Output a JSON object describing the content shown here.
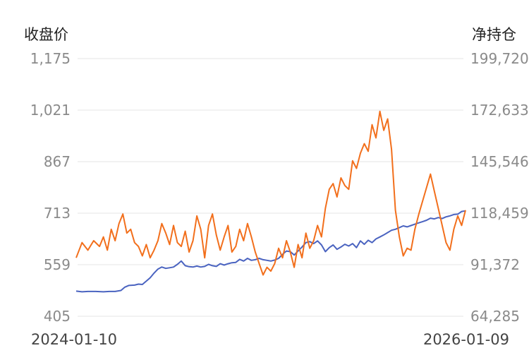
{
  "chart_data": {
    "type": "line",
    "title": "",
    "left_axis_title": "收盘价",
    "right_axis_title": "净持仓",
    "left_axis": {
      "ticks": [
        "1,175",
        "1,021",
        "867",
        "713",
        "559",
        "405"
      ],
      "range": [
        405,
        1175
      ]
    },
    "right_axis": {
      "ticks": [
        "199,720",
        "172,633",
        "145,546",
        "118,459",
        "91,372",
        "64,285"
      ],
      "range": [
        64285,
        199720
      ]
    },
    "x_ticks": [
      "2024-01-10",
      "2026-01-09"
    ],
    "x_range": [
      0,
      100
    ],
    "grid": true,
    "series": [
      {
        "name": "",
        "axis": "left",
        "color": "#4a63c0",
        "points": [
          [
            0,
            480
          ],
          [
            1.5,
            478
          ],
          [
            3,
            479
          ],
          [
            5,
            479
          ],
          [
            7,
            478
          ],
          [
            8.5,
            479
          ],
          [
            10,
            479
          ],
          [
            11.5,
            482
          ],
          [
            12.5,
            492
          ],
          [
            13.5,
            497
          ],
          [
            15,
            498
          ],
          [
            16,
            501
          ],
          [
            17,
            500
          ],
          [
            18,
            510
          ],
          [
            19,
            520
          ],
          [
            20,
            534
          ],
          [
            21,
            546
          ],
          [
            22,
            552
          ],
          [
            23,
            548
          ],
          [
            24,
            550
          ],
          [
            25,
            552
          ],
          [
            26,
            560
          ],
          [
            27,
            570
          ],
          [
            28,
            556
          ],
          [
            29,
            553
          ],
          [
            30,
            552
          ],
          [
            31,
            555
          ],
          [
            32,
            552
          ],
          [
            33,
            554
          ],
          [
            34,
            560
          ],
          [
            35,
            556
          ],
          [
            36,
            554
          ],
          [
            37,
            562
          ],
          [
            38,
            558
          ],
          [
            39,
            562
          ],
          [
            40,
            565
          ],
          [
            41,
            566
          ],
          [
            42,
            575
          ],
          [
            43,
            570
          ],
          [
            44,
            578
          ],
          [
            45,
            572
          ],
          [
            46,
            574
          ],
          [
            47,
            578
          ],
          [
            48,
            574
          ],
          [
            49,
            572
          ],
          [
            50,
            570
          ],
          [
            51,
            573
          ],
          [
            52,
            578
          ],
          [
            53,
            590
          ],
          [
            54,
            600
          ],
          [
            55,
            598
          ],
          [
            56,
            588
          ],
          [
            57,
            600
          ],
          [
            58,
            612
          ],
          [
            59,
            625
          ],
          [
            60,
            628
          ],
          [
            61,
            622
          ],
          [
            62,
            630
          ],
          [
            63,
            618
          ],
          [
            64,
            598
          ],
          [
            65,
            610
          ],
          [
            66,
            618
          ],
          [
            67,
            605
          ],
          [
            68,
            612
          ],
          [
            69,
            620
          ],
          [
            70,
            615
          ],
          [
            71,
            622
          ],
          [
            72,
            610
          ],
          [
            73,
            630
          ],
          [
            74,
            620
          ],
          [
            75,
            632
          ],
          [
            76,
            625
          ],
          [
            77,
            636
          ],
          [
            78,
            642
          ],
          [
            79,
            648
          ],
          [
            80,
            655
          ],
          [
            81,
            662
          ],
          [
            82,
            665
          ],
          [
            83,
            670
          ],
          [
            84,
            675
          ],
          [
            85,
            672
          ],
          [
            86,
            676
          ],
          [
            87,
            680
          ],
          [
            88,
            684
          ],
          [
            89,
            688
          ],
          [
            90,
            692
          ],
          [
            91,
            698
          ],
          [
            92,
            696
          ],
          [
            93,
            700
          ],
          [
            94,
            697
          ],
          [
            95,
            702
          ],
          [
            96,
            705
          ],
          [
            97,
            709
          ],
          [
            98,
            710
          ],
          [
            99,
            718
          ],
          [
            100,
            720
          ]
        ],
        "note_skip": true
      },
      {
        "name": "",
        "axis": "right",
        "color": "#f26f1c",
        "points": [
          [
            0,
            95000
          ],
          [
            1.5,
            103000
          ],
          [
            3,
            99000
          ],
          [
            4.5,
            104000
          ],
          [
            6,
            101000
          ],
          [
            7,
            106000
          ],
          [
            8,
            99000
          ],
          [
            9,
            110000
          ],
          [
            10,
            104000
          ],
          [
            11,
            113000
          ],
          [
            12,
            118000
          ],
          [
            13,
            108000
          ],
          [
            14,
            110000
          ],
          [
            15,
            103000
          ],
          [
            16,
            101000
          ],
          [
            17,
            96000
          ],
          [
            18,
            102000
          ],
          [
            19,
            95000
          ],
          [
            20,
            99000
          ],
          [
            21,
            104000
          ],
          [
            22,
            113000
          ],
          [
            23,
            108000
          ],
          [
            24,
            102000
          ],
          [
            25,
            112000
          ],
          [
            26,
            103000
          ],
          [
            27,
            101000
          ],
          [
            28,
            109000
          ],
          [
            29,
            98000
          ],
          [
            30,
            104000
          ],
          [
            31,
            117000
          ],
          [
            32,
            110000
          ],
          [
            33,
            95000
          ],
          [
            34,
            112000
          ],
          [
            35,
            118000
          ],
          [
            36,
            107000
          ],
          [
            37,
            99000
          ],
          [
            38,
            106000
          ],
          [
            39,
            112000
          ],
          [
            40,
            98000
          ],
          [
            41,
            101000
          ],
          [
            42,
            110000
          ],
          [
            43,
            104000
          ],
          [
            44,
            113000
          ],
          [
            45,
            106000
          ],
          [
            46,
            98000
          ],
          [
            47,
            92000
          ],
          [
            48,
            86000
          ],
          [
            49,
            90000
          ],
          [
            50,
            88000
          ],
          [
            51,
            92000
          ],
          [
            52,
            100000
          ],
          [
            53,
            95000
          ],
          [
            54,
            104000
          ],
          [
            55,
            98000
          ],
          [
            56,
            90000
          ],
          [
            57,
            102000
          ],
          [
            58,
            95000
          ],
          [
            59,
            108000
          ],
          [
            60,
            100000
          ],
          [
            61,
            104000
          ],
          [
            62,
            112000
          ],
          [
            63,
            106000
          ],
          [
            64,
            121000
          ],
          [
            65,
            131000
          ],
          [
            66,
            134000
          ],
          [
            67,
            127000
          ],
          [
            68,
            137000
          ],
          [
            69,
            133000
          ],
          [
            70,
            131000
          ],
          [
            71,
            146000
          ],
          [
            72,
            142000
          ],
          [
            73,
            150000
          ],
          [
            74,
            155000
          ],
          [
            75,
            151000
          ],
          [
            76,
            165000
          ],
          [
            77,
            158000
          ],
          [
            78,
            172000
          ],
          [
            79,
            162000
          ],
          [
            80,
            168000
          ],
          [
            81,
            152000
          ],
          [
            82,
            120000
          ],
          [
            83,
            106000
          ],
          [
            84,
            96000
          ],
          [
            85,
            100000
          ],
          [
            86,
            99000
          ],
          [
            87,
            110000
          ],
          [
            88,
            118000
          ],
          [
            89,
            125000
          ],
          [
            90,
            132000
          ],
          [
            91,
            139000
          ],
          [
            92,
            130000
          ],
          [
            93,
            121000
          ],
          [
            94,
            112000
          ],
          [
            95,
            103000
          ],
          [
            96,
            99000
          ],
          [
            97,
            110000
          ],
          [
            98,
            117000
          ],
          [
            99,
            112000
          ],
          [
            100,
            120000
          ]
        ],
        "note_skip": true
      }
    ]
  }
}
